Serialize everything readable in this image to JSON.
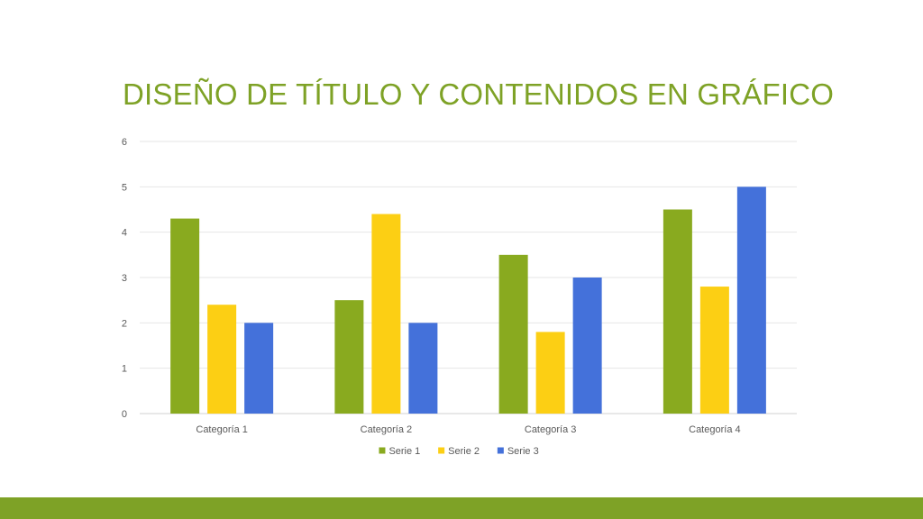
{
  "slide": {
    "title": "DISEÑO DE TÍTULO Y CONTENIDOS EN GRÁFICO",
    "title_color": "#7EA226",
    "accent_bar_color": "#7EA226"
  },
  "chart_data": {
    "type": "bar",
    "categories": [
      "Categoría 1",
      "Categoría 2",
      "Categoría 3",
      "Categoría 4"
    ],
    "series": [
      {
        "name": "Serie 1",
        "color": "#89AA1F",
        "values": [
          4.3,
          2.5,
          3.5,
          4.5
        ]
      },
      {
        "name": "Serie 2",
        "color": "#FCCF14",
        "values": [
          2.4,
          4.4,
          1.8,
          2.8
        ]
      },
      {
        "name": "Serie 3",
        "color": "#4471DA",
        "values": [
          2,
          2,
          3,
          5
        ]
      }
    ],
    "title": "",
    "xlabel": "",
    "ylabel": "",
    "ylim": [
      0,
      6
    ],
    "yticks": [
      0,
      1,
      2,
      3,
      4,
      5,
      6
    ],
    "grid": true,
    "legend": "bottom"
  }
}
